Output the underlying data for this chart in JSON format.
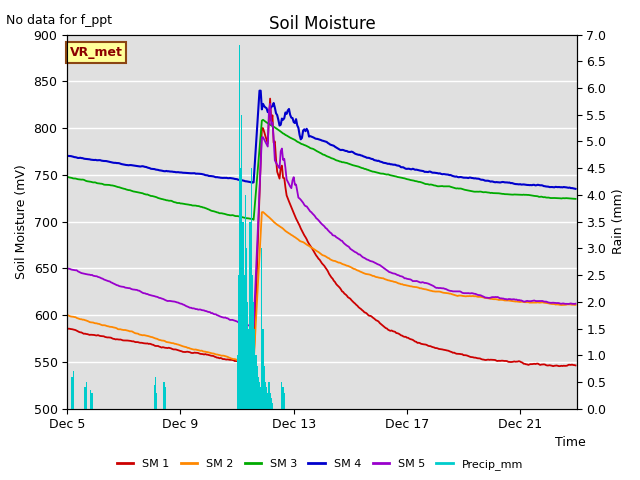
{
  "title": "Soil Moisture",
  "subtitle": "No data for f_ppt",
  "ylabel_left": "Soil Moisture (mV)",
  "ylabel_right": "Rain (mm)",
  "xlabel": "Time",
  "box_label": "VR_met",
  "ylim_left": [
    500,
    900
  ],
  "ylim_right": [
    0.0,
    7.0
  ],
  "yticks_left": [
    500,
    550,
    600,
    650,
    700,
    750,
    800,
    850,
    900
  ],
  "yticks_right": [
    0.0,
    0.5,
    1.0,
    1.5,
    2.0,
    2.5,
    3.0,
    3.5,
    4.0,
    4.5,
    5.0,
    5.5,
    6.0,
    6.5,
    7.0
  ],
  "xtick_labels": [
    "Dec 5",
    "Dec 9",
    "Dec 13",
    "Dec 17",
    "Dec 21"
  ],
  "background_color": "#e0e0e0",
  "legend_entries": [
    "SM 1",
    "SM 2",
    "SM 3",
    "SM 4",
    "SM 5",
    "Precip_mm"
  ],
  "sm1_color": "#cc0000",
  "sm2_color": "#ff8800",
  "sm3_color": "#00aa00",
  "sm4_color": "#0000cc",
  "sm5_color": "#9900cc",
  "precip_color": "#00cccc",
  "grid_color": "#ffffff",
  "title_fontsize": 12,
  "label_fontsize": 9,
  "legend_fontsize": 8
}
